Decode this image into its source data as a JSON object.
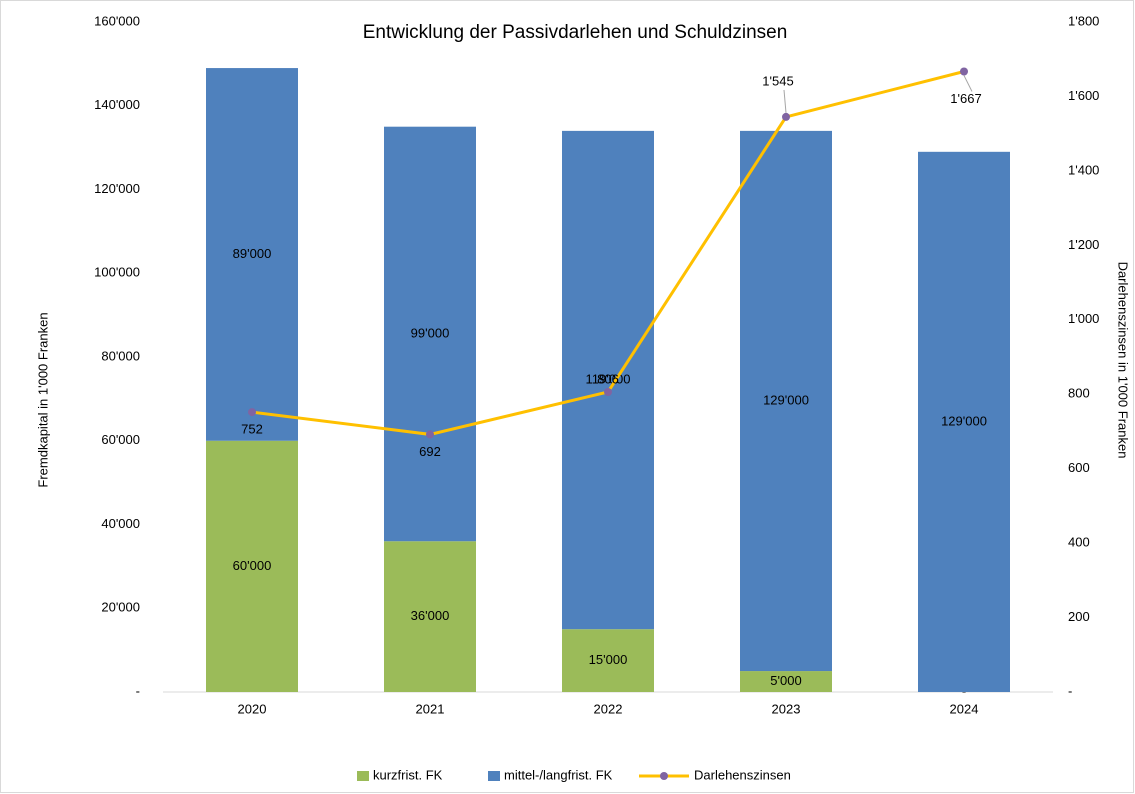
{
  "chart_data": {
    "type": "bar",
    "stacked": true,
    "title": "Entwicklung der Passivdarlehen und Schuldzinsen",
    "ylabel": "Fremdkapital in 1'000 Franken",
    "y2label": "Darlehenszinsen in 1'000 Franken",
    "categories": [
      "2020",
      "2021",
      "2022",
      "2023",
      "2024"
    ],
    "series": [
      {
        "name": "kurzfrist. FK",
        "color": "#9bbb59",
        "type": "bar",
        "values": [
          60000,
          36000,
          15000,
          5000,
          0
        ],
        "value_labels": [
          "60'000",
          "36'000",
          "15'000",
          "5'000",
          "-"
        ]
      },
      {
        "name": "mittel-/langfrist. FK",
        "color": "#4f81bd",
        "type": "bar",
        "values": [
          89000,
          99000,
          119000,
          129000,
          129000
        ],
        "value_labels": [
          "89'000",
          "99'000",
          "119'000",
          "129'000",
          "129'000"
        ]
      },
      {
        "name": "Darlehenszinsen",
        "color": "#ffc000",
        "marker_color": "#8064a2",
        "type": "line",
        "axis": "y2",
        "values": [
          752,
          692,
          806,
          1545,
          1667
        ],
        "value_labels": [
          "752",
          "692",
          "806",
          "1'545",
          "1'667"
        ]
      }
    ],
    "ylim": [
      0,
      160000
    ],
    "yticks": [
      {
        "value": 0,
        "label": "-"
      },
      {
        "value": 20000,
        "label": "20'000"
      },
      {
        "value": 40000,
        "label": "40'000"
      },
      {
        "value": 60000,
        "label": "60'000"
      },
      {
        "value": 80000,
        "label": "80'000"
      },
      {
        "value": 100000,
        "label": "100'000"
      },
      {
        "value": 120000,
        "label": "120'000"
      },
      {
        "value": 140000,
        "label": "140'000"
      },
      {
        "value": 160000,
        "label": "160'000"
      }
    ],
    "y2lim": [
      0,
      1800
    ],
    "y2ticks": [
      {
        "value": 0,
        "label": "-"
      },
      200,
      400,
      600,
      800,
      {
        "value": 1000,
        "label": "1'000"
      },
      {
        "value": 1200,
        "label": "1'200"
      },
      {
        "value": 1400,
        "label": "1'400"
      },
      {
        "value": 1600,
        "label": "1'600"
      },
      {
        "value": 1800,
        "label": "1'800"
      }
    ],
    "grid": false,
    "legend": "bottom"
  }
}
